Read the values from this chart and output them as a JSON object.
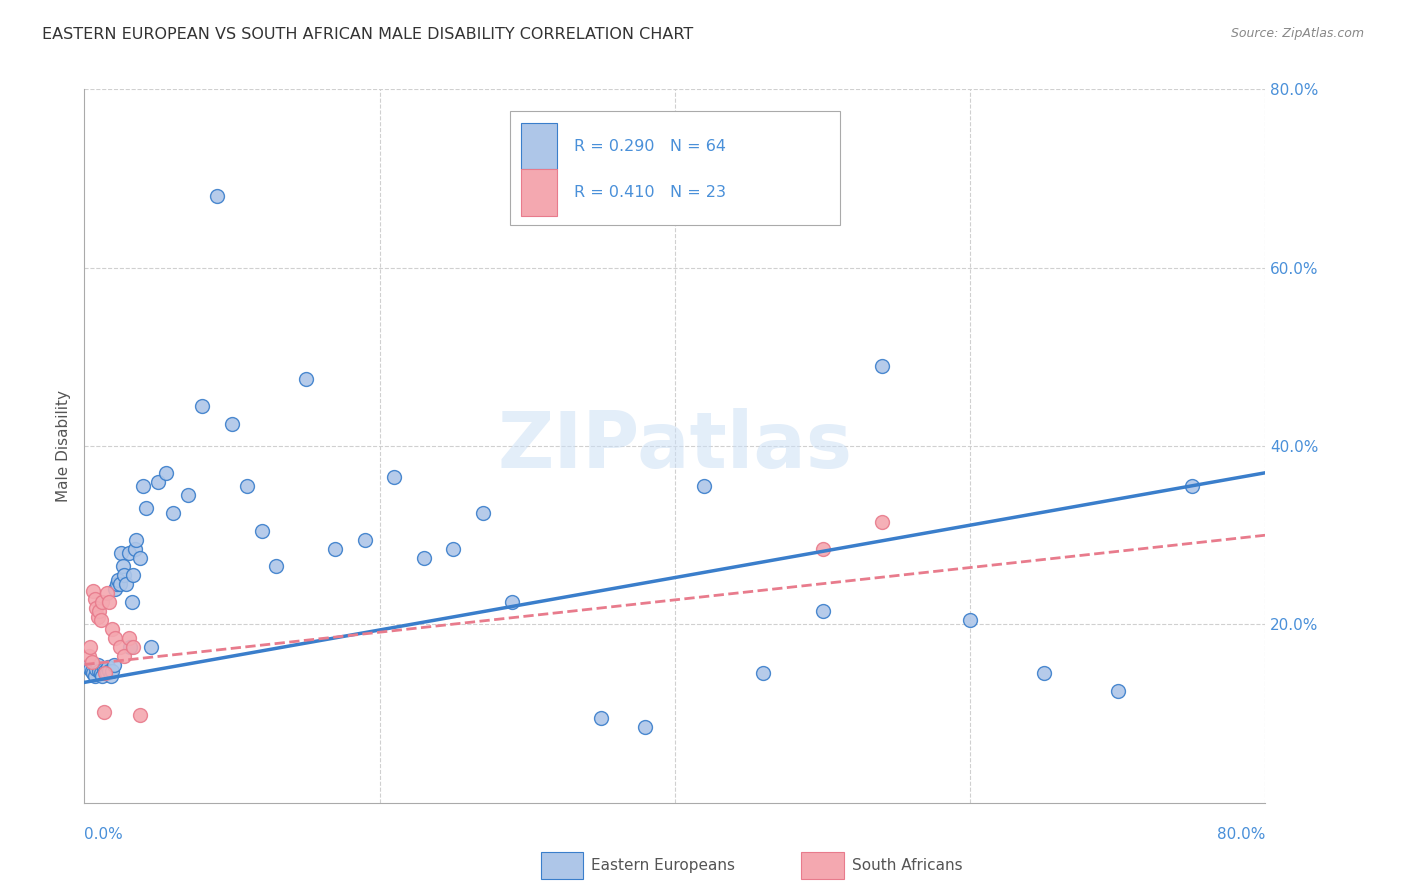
{
  "title": "EASTERN EUROPEAN VS SOUTH AFRICAN MALE DISABILITY CORRELATION CHART",
  "source": "Source: ZipAtlas.com",
  "ylabel": "Male Disability",
  "watermark": "ZIPatlas",
  "xlim": [
    0.0,
    0.8
  ],
  "ylim": [
    0.0,
    0.8
  ],
  "eastern_european_R": 0.29,
  "eastern_european_N": 64,
  "south_african_R": 0.41,
  "south_african_N": 23,
  "eastern_european_color": "#aec6e8",
  "south_african_color": "#f4a8b0",
  "eastern_european_line_color": "#3a7ecb",
  "south_african_line_color": "#e87b8c",
  "eastern_european_x": [
    0.003,
    0.004,
    0.005,
    0.006,
    0.007,
    0.008,
    0.009,
    0.01,
    0.011,
    0.012,
    0.013,
    0.014,
    0.015,
    0.016,
    0.017,
    0.018,
    0.019,
    0.02,
    0.021,
    0.022,
    0.023,
    0.024,
    0.025,
    0.026,
    0.027,
    0.028,
    0.03,
    0.031,
    0.032,
    0.033,
    0.034,
    0.035,
    0.038,
    0.04,
    0.042,
    0.045,
    0.05,
    0.055,
    0.06,
    0.07,
    0.08,
    0.09,
    0.1,
    0.11,
    0.12,
    0.13,
    0.15,
    0.17,
    0.19,
    0.21,
    0.23,
    0.25,
    0.27,
    0.29,
    0.35,
    0.38,
    0.42,
    0.46,
    0.5,
    0.54,
    0.6,
    0.65,
    0.7,
    0.75
  ],
  "eastern_european_y": [
    0.155,
    0.15,
    0.148,
    0.145,
    0.142,
    0.15,
    0.155,
    0.148,
    0.145,
    0.142,
    0.15,
    0.148,
    0.145,
    0.152,
    0.148,
    0.142,
    0.148,
    0.155,
    0.24,
    0.245,
    0.25,
    0.245,
    0.28,
    0.265,
    0.255,
    0.245,
    0.28,
    0.175,
    0.225,
    0.255,
    0.285,
    0.295,
    0.275,
    0.355,
    0.33,
    0.175,
    0.36,
    0.37,
    0.325,
    0.345,
    0.445,
    0.68,
    0.425,
    0.355,
    0.305,
    0.265,
    0.475,
    0.285,
    0.295,
    0.365,
    0.275,
    0.285,
    0.325,
    0.225,
    0.095,
    0.085,
    0.355,
    0.145,
    0.215,
    0.49,
    0.205,
    0.145,
    0.125,
    0.355
  ],
  "south_african_x": [
    0.003,
    0.004,
    0.005,
    0.006,
    0.007,
    0.008,
    0.009,
    0.01,
    0.011,
    0.012,
    0.013,
    0.014,
    0.015,
    0.017,
    0.019,
    0.021,
    0.024,
    0.027,
    0.03,
    0.033,
    0.038,
    0.5,
    0.54
  ],
  "south_african_y": [
    0.165,
    0.175,
    0.158,
    0.238,
    0.228,
    0.218,
    0.208,
    0.215,
    0.205,
    0.225,
    0.102,
    0.145,
    0.235,
    0.225,
    0.195,
    0.185,
    0.175,
    0.165,
    0.185,
    0.175,
    0.098,
    0.285,
    0.315
  ],
  "ee_trendline_x": [
    0.0,
    0.8
  ],
  "ee_trendline_y": [
    0.135,
    0.37
  ],
  "sa_trendline_x": [
    0.0,
    0.8
  ],
  "sa_trendline_y": [
    0.155,
    0.3
  ],
  "background_color": "#ffffff",
  "grid_color": "#d0d0d0",
  "title_color": "#333333",
  "axis_label_color": "#4a90d9",
  "marker_size": 100
}
